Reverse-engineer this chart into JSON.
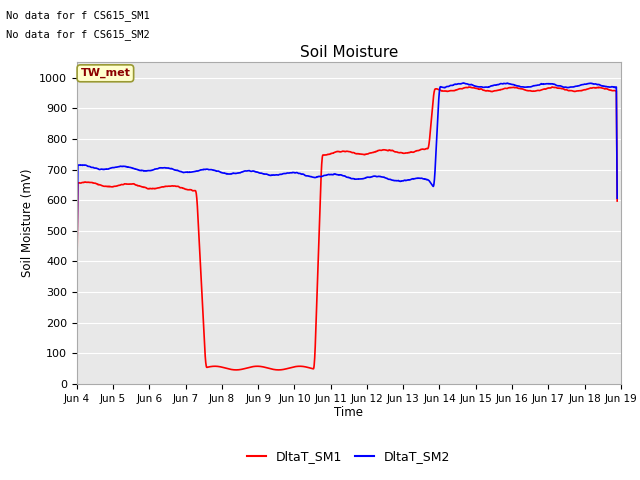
{
  "title": "Soil Moisture",
  "ylabel": "Soil Moisture (mV)",
  "xlabel": "Time",
  "ylim": [
    0,
    1050
  ],
  "xlim": [
    4,
    19
  ],
  "background_color": "#e8e8e8",
  "annotations": [
    "No data for f CS615_SM1",
    "No data for f CS615_SM2"
  ],
  "tw_met_label": "TW_met",
  "legend_labels": [
    "DltaT_SM1",
    "DltaT_SM2"
  ],
  "line_colors": [
    "red",
    "blue"
  ],
  "line_width": 1.2,
  "x_tick_labels": [
    "Jun 4",
    "Jun 5",
    "Jun 6",
    "Jun 7",
    "Jun 8",
    "Jun 9",
    "Jun 10",
    "Jun 11",
    "Jun 12",
    "Jun 13",
    "Jun 14",
    "Jun 15",
    "Jun 16",
    "Jun 17",
    "Jun 18",
    "Jun 19"
  ],
  "x_tick_positions": [
    4,
    5,
    6,
    7,
    8,
    9,
    10,
    11,
    12,
    13,
    14,
    15,
    16,
    17,
    18,
    19
  ],
  "ytick_interval": 100,
  "grid_color": "white",
  "figsize": [
    6.4,
    4.8
  ],
  "dpi": 100
}
